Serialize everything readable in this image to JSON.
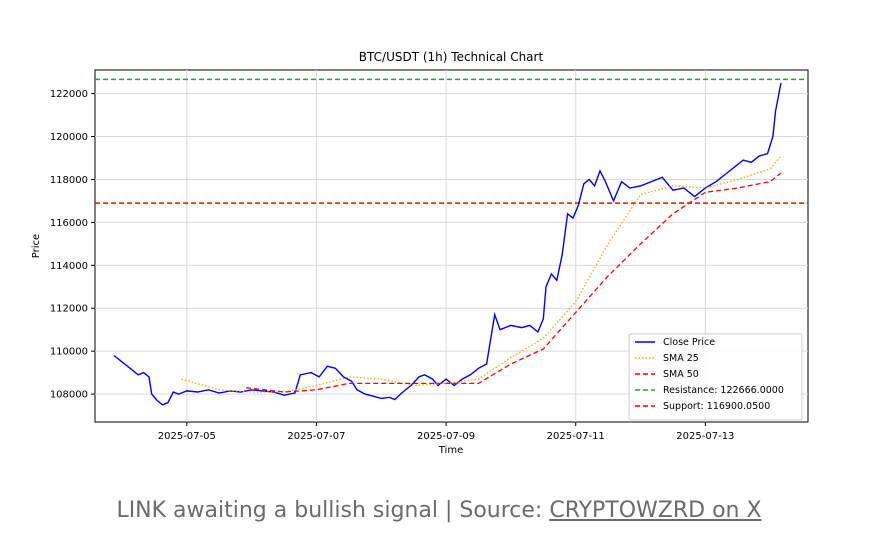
{
  "chart_data": {
    "type": "line",
    "title": "BTC/USDT (1h) Technical Chart",
    "xlabel": "Time",
    "ylabel": "Price",
    "x_ticks": [
      "2025-07-05",
      "2025-07-07",
      "2025-07-09",
      "2025-07-11",
      "2025-07-13"
    ],
    "y_ticks": [
      "108000",
      "110000",
      "112000",
      "114000",
      "116000",
      "118000",
      "120000",
      "122000"
    ],
    "xlim": [
      "2025-07-03 14:00",
      "2025-07-14 14:00"
    ],
    "ylim": [
      106700,
      123100
    ],
    "grid": true,
    "legend_position": "bottom-right",
    "series": [
      {
        "name": "Close Price",
        "color": "#0000ff",
        "style": "solid",
        "points": [
          [
            "2025-07-03 21:00",
            109800
          ],
          [
            "2025-07-04 00:00",
            109500
          ],
          [
            "2025-07-04 03:00",
            109200
          ],
          [
            "2025-07-04 06:00",
            108900
          ],
          [
            "2025-07-04 08:00",
            109000
          ],
          [
            "2025-07-04 10:00",
            108800
          ],
          [
            "2025-07-04 11:00",
            108000
          ],
          [
            "2025-07-04 13:00",
            107700
          ],
          [
            "2025-07-04 15:00",
            107500
          ],
          [
            "2025-07-04 17:00",
            107600
          ],
          [
            "2025-07-04 19:00",
            108100
          ],
          [
            "2025-07-04 21:00",
            108000
          ],
          [
            "2025-07-05 00:00",
            108150
          ],
          [
            "2025-07-05 04:00",
            108100
          ],
          [
            "2025-07-05 08:00",
            108200
          ],
          [
            "2025-07-05 12:00",
            108050
          ],
          [
            "2025-07-05 16:00",
            108150
          ],
          [
            "2025-07-05 20:00",
            108100
          ],
          [
            "2025-07-06 00:00",
            108200
          ],
          [
            "2025-07-06 04:00",
            108150
          ],
          [
            "2025-07-06 08:00",
            108100
          ],
          [
            "2025-07-06 12:00",
            107950
          ],
          [
            "2025-07-06 16:00",
            108050
          ],
          [
            "2025-07-06 18:00",
            108900
          ],
          [
            "2025-07-06 22:00",
            109000
          ],
          [
            "2025-07-07 01:00",
            108800
          ],
          [
            "2025-07-07 04:00",
            109300
          ],
          [
            "2025-07-07 07:00",
            109200
          ],
          [
            "2025-07-07 10:00",
            108800
          ],
          [
            "2025-07-07 13:00",
            108600
          ],
          [
            "2025-07-07 15:00",
            108200
          ],
          [
            "2025-07-07 18:00",
            108000
          ],
          [
            "2025-07-07 21:00",
            107900
          ],
          [
            "2025-07-08 00:00",
            107800
          ],
          [
            "2025-07-08 03:00",
            107850
          ],
          [
            "2025-07-08 05:00",
            107750
          ],
          [
            "2025-07-08 08:00",
            108100
          ],
          [
            "2025-07-08 11:00",
            108400
          ],
          [
            "2025-07-08 14:00",
            108800
          ],
          [
            "2025-07-08 16:00",
            108900
          ],
          [
            "2025-07-08 19:00",
            108700
          ],
          [
            "2025-07-08 21:00",
            108400
          ],
          [
            "2025-07-09 00:00",
            108700
          ],
          [
            "2025-07-09 03:00",
            108400
          ],
          [
            "2025-07-09 06:00",
            108700
          ],
          [
            "2025-07-09 09:00",
            108900
          ],
          [
            "2025-07-09 12:00",
            109200
          ],
          [
            "2025-07-09 15:00",
            109400
          ],
          [
            "2025-07-09 18:00",
            111700
          ],
          [
            "2025-07-09 20:00",
            111000
          ],
          [
            "2025-07-10 00:00",
            111200
          ],
          [
            "2025-07-10 04:00",
            111100
          ],
          [
            "2025-07-10 07:00",
            111200
          ],
          [
            "2025-07-10 10:00",
            110900
          ],
          [
            "2025-07-10 12:00",
            111500
          ],
          [
            "2025-07-10 13:00",
            113000
          ],
          [
            "2025-07-10 15:00",
            113600
          ],
          [
            "2025-07-10 17:00",
            113300
          ],
          [
            "2025-07-10 19:00",
            114500
          ],
          [
            "2025-07-10 21:00",
            116400
          ],
          [
            "2025-07-10 23:00",
            116200
          ],
          [
            "2025-07-11 01:00",
            116800
          ],
          [
            "2025-07-11 03:00",
            117800
          ],
          [
            "2025-07-11 05:00",
            118000
          ],
          [
            "2025-07-11 07:00",
            117700
          ],
          [
            "2025-07-11 09:00",
            118400
          ],
          [
            "2025-07-11 11:00",
            117900
          ],
          [
            "2025-07-11 14:00",
            117000
          ],
          [
            "2025-07-11 17:00",
            117900
          ],
          [
            "2025-07-11 20:00",
            117600
          ],
          [
            "2025-07-12 00:00",
            117700
          ],
          [
            "2025-07-12 04:00",
            117900
          ],
          [
            "2025-07-12 08:00",
            118100
          ],
          [
            "2025-07-12 12:00",
            117500
          ],
          [
            "2025-07-12 16:00",
            117600
          ],
          [
            "2025-07-12 20:00",
            117200
          ],
          [
            "2025-07-13 00:00",
            117600
          ],
          [
            "2025-07-13 04:00",
            117900
          ],
          [
            "2025-07-13 08:00",
            118300
          ],
          [
            "2025-07-13 11:00",
            118600
          ],
          [
            "2025-07-13 14:00",
            118900
          ],
          [
            "2025-07-13 17:00",
            118800
          ],
          [
            "2025-07-13 20:00",
            119100
          ],
          [
            "2025-07-13 23:00",
            119200
          ],
          [
            "2025-07-14 01:00",
            120000
          ],
          [
            "2025-07-14 02:00",
            121200
          ],
          [
            "2025-07-14 04:00",
            122500
          ]
        ]
      },
      {
        "name": "SMA 25",
        "color": "#ffa500",
        "style": "dotted",
        "points": [
          [
            "2025-07-04 22:00",
            108700
          ],
          [
            "2025-07-05 12:00",
            108200
          ],
          [
            "2025-07-06 00:00",
            108100
          ],
          [
            "2025-07-06 12:00",
            108100
          ],
          [
            "2025-07-07 00:00",
            108400
          ],
          [
            "2025-07-07 12:00",
            108800
          ],
          [
            "2025-07-08 00:00",
            108700
          ],
          [
            "2025-07-08 12:00",
            108400
          ],
          [
            "2025-07-09 00:00",
            108500
          ],
          [
            "2025-07-09 12:00",
            108700
          ],
          [
            "2025-07-10 00:00",
            109700
          ],
          [
            "2025-07-10 12:00",
            110600
          ],
          [
            "2025-07-11 00:00",
            112300
          ],
          [
            "2025-07-11 12:00",
            115000
          ],
          [
            "2025-07-12 00:00",
            117300
          ],
          [
            "2025-07-12 12:00",
            117700
          ],
          [
            "2025-07-13 00:00",
            117600
          ],
          [
            "2025-07-13 12:00",
            118000
          ],
          [
            "2025-07-14 00:00",
            118500
          ],
          [
            "2025-07-14 04:00",
            119100
          ]
        ]
      },
      {
        "name": "SMA 50",
        "color": "#ff0000",
        "style": "dashed",
        "points": [
          [
            "2025-07-05 22:00",
            108300
          ],
          [
            "2025-07-06 12:00",
            108100
          ],
          [
            "2025-07-07 00:00",
            108200
          ],
          [
            "2025-07-07 12:00",
            108500
          ],
          [
            "2025-07-08 00:00",
            108500
          ],
          [
            "2025-07-08 12:00",
            108500
          ],
          [
            "2025-07-09 00:00",
            108500
          ],
          [
            "2025-07-09 12:00",
            108500
          ],
          [
            "2025-07-10 00:00",
            109400
          ],
          [
            "2025-07-10 12:00",
            110100
          ],
          [
            "2025-07-11 00:00",
            111800
          ],
          [
            "2025-07-11 12:00",
            113500
          ],
          [
            "2025-07-12 00:00",
            115000
          ],
          [
            "2025-07-12 12:00",
            116400
          ],
          [
            "2025-07-13 00:00",
            117400
          ],
          [
            "2025-07-13 12:00",
            117600
          ],
          [
            "2025-07-14 00:00",
            117900
          ],
          [
            "2025-07-14 04:00",
            118300
          ]
        ]
      }
    ],
    "reference_lines": [
      {
        "name": "Resistance: 122666.0000",
        "value": 122666.0,
        "color": "#2ca02c",
        "style": "dashed"
      },
      {
        "name": "Support: 116900.0500",
        "value": 116900.05,
        "color": "#ff0000",
        "style": "dashed"
      }
    ],
    "legend": [
      "Close Price",
      "SMA 25",
      "SMA 50",
      "Resistance: 122666.0000",
      "Support: 116900.0500"
    ]
  },
  "caption": {
    "text": "LINK awaiting a bullish signal | Source: ",
    "link_text": "CRYPTOWZRD on X"
  }
}
